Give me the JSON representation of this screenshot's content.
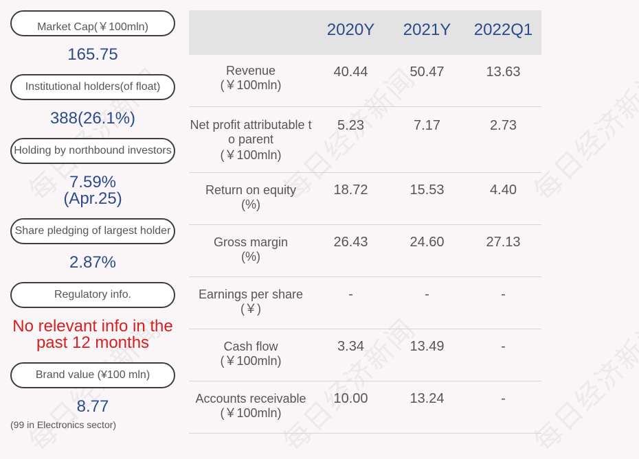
{
  "watermark_text": "每日经济新闻",
  "left_panel": [
    {
      "label": "Market Cap(￥100mln)",
      "value": "165.75"
    },
    {
      "label": "Institutional holders(of float)",
      "value": "388(26.1%)"
    },
    {
      "label": "Holding by northbound investors",
      "value": "7.59%",
      "value2": "(Apr.25)"
    },
    {
      "label": "Share pledging of largest holder",
      "value": "2.87%"
    },
    {
      "label": "Regulatory info.",
      "value": "No relevant info in the",
      "value2": "past 12 months"
    },
    {
      "label": "Brand value (¥100 mln)",
      "value": "8.77",
      "note": "(99 in Electronics sector)"
    }
  ],
  "table": {
    "headers": [
      "2020Y",
      "2021Y",
      "2022Q1"
    ],
    "rows": [
      {
        "label": "Revenue",
        "unit": "(￥100mln)",
        "values": [
          "40.44",
          "50.47",
          "13.63"
        ]
      },
      {
        "label": "Net profit attributable t",
        "label2": "o parent",
        "unit": "(￥100mln)",
        "values": [
          "5.23",
          "7.17",
          "2.73"
        ]
      },
      {
        "label": "Return on equity",
        "unit": "(%)",
        "values": [
          "18.72",
          "15.53",
          "4.40"
        ]
      },
      {
        "label": "Gross margin",
        "unit": "(%)",
        "values": [
          "26.43",
          "24.60",
          "27.13"
        ]
      },
      {
        "label": "Earnings per share",
        "unit": "(￥)",
        "values": [
          "-",
          "-",
          "-"
        ]
      },
      {
        "label": "Cash flow",
        "unit": "(￥100mln)",
        "values": [
          "3.34",
          "13.49",
          "-"
        ]
      },
      {
        "label": "Accounts receivable",
        "unit": "(￥100mln)",
        "values": [
          "10.00",
          "13.24",
          "-"
        ]
      }
    ]
  }
}
